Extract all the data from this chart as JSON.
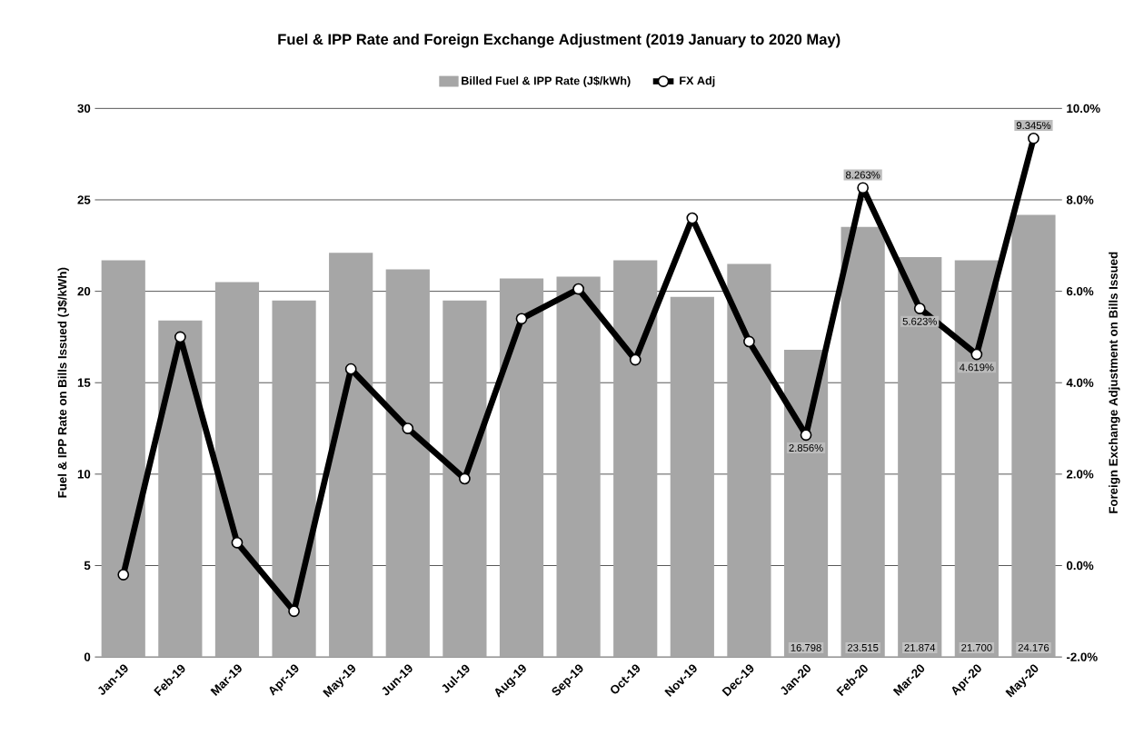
{
  "chart_data": {
    "type": "bar",
    "title": "Fuel & IPP Rate and Foreign Exchange Adjustment (2019 January to 2020 May)",
    "ylabel": "Fuel & IPP Rate on Bills Issued (J$/kWh)",
    "y2label": "Foreign Exchange Adjustment on Bills Issued",
    "categories": [
      "Jan-19",
      "Feb-19",
      "Mar-19",
      "Apr-19",
      "May-19",
      "Jun-19",
      "Jul-19",
      "Aug-19",
      "Sep-19",
      "Oct-19",
      "Nov-19",
      "Dec-19",
      "Jan-20",
      "Feb-20",
      "Mar-20",
      "Apr-20",
      "May-20"
    ],
    "series": [
      {
        "name": "Billed Fuel & IPP Rate (J$/kWh)",
        "color": "#a6a6a6",
        "values": [
          21.7,
          18.4,
          20.5,
          19.5,
          22.1,
          21.2,
          19.5,
          20.7,
          20.8,
          21.7,
          19.7,
          21.5,
          16.798,
          23.515,
          21.874,
          21.7,
          24.176
        ],
        "value_labels": [
          null,
          null,
          null,
          null,
          null,
          null,
          null,
          null,
          null,
          null,
          null,
          null,
          "16.798",
          "23.515",
          "21.874",
          "21.700",
          "24.176"
        ]
      },
      {
        "name": "FX Adj",
        "type": "line",
        "axis": "y2",
        "color": "#000000",
        "values": [
          -0.2,
          5.0,
          0.5,
          -1.0,
          4.3,
          3.0,
          1.9,
          5.4,
          6.05,
          4.5,
          7.6,
          4.9,
          2.856,
          8.263,
          5.623,
          4.619,
          9.345
        ],
        "value_labels": [
          null,
          null,
          null,
          null,
          null,
          null,
          null,
          null,
          null,
          null,
          null,
          null,
          "2.856%",
          "8.263%",
          "5.623%",
          "4.619%",
          "9.345%"
        ]
      }
    ],
    "ylim": [
      0,
      30
    ],
    "yticks": [
      0,
      5,
      10,
      15,
      20,
      25,
      30
    ],
    "y2lim": [
      -2,
      10
    ],
    "y2ticks": [
      {
        "value": -2,
        "label": "-2.0%"
      },
      {
        "value": 0,
        "label": "0.0%"
      },
      {
        "value": 2,
        "label": "2.0%"
      },
      {
        "value": 4,
        "label": "4.0%"
      },
      {
        "value": 6,
        "label": "6.0%"
      },
      {
        "value": 8,
        "label": "8.0%"
      },
      {
        "value": 10,
        "label": "10.0%"
      }
    ],
    "grid": "y",
    "legend": "top",
    "marker": "circle"
  }
}
